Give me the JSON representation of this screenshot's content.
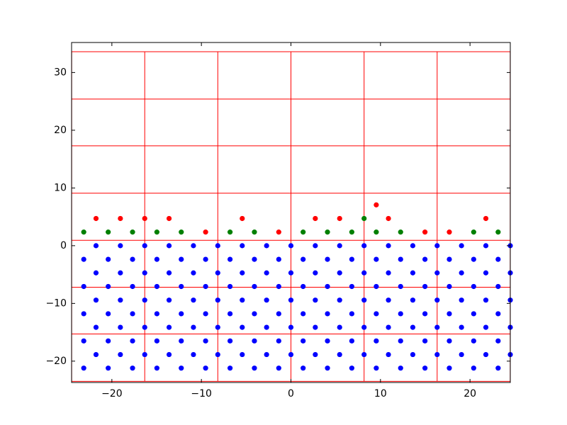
{
  "chart_data": {
    "type": "scatter",
    "xlim": [
      -24.5,
      24.5
    ],
    "ylim": [
      -23.7,
      35.2
    ],
    "xticks": [
      {
        "value": -20,
        "label": "−20"
      },
      {
        "value": -10,
        "label": "−10"
      },
      0,
      10,
      20
    ],
    "yticks": [
      {
        "value": -20,
        "label": "−20"
      },
      {
        "value": -10,
        "label": "−10"
      },
      0,
      10,
      20,
      30
    ],
    "lines": {
      "color": "#ff0000",
      "vlines": [
        -24.49,
        -16.33,
        -8.17,
        0,
        8.17,
        16.33,
        24.49
      ],
      "hlines": [
        -23.5,
        -15.3,
        -7.2,
        0.94,
        9.1,
        17.3,
        25.4,
        33.6
      ]
    },
    "series": [
      {
        "color": "#0000ff",
        "x": [
          -21.77,
          -19.05,
          -16.33,
          -13.61,
          -10.89,
          -8.17,
          -5.44,
          -2.72,
          0,
          2.72,
          5.44,
          8.17,
          10.89,
          13.61,
          16.33,
          19.05,
          21.77,
          24.5,
          -23.14,
          -20.41,
          -17.69,
          -14.97,
          -12.25,
          -9.53,
          -6.8,
          -4.08,
          -1.36,
          1.36,
          4.08,
          6.8,
          9.53,
          12.25,
          14.97,
          17.69,
          20.41,
          23.14,
          -21.77,
          -19.05,
          -16.33,
          -13.61,
          -10.89,
          -8.17,
          -5.44,
          -2.72,
          0,
          2.72,
          5.44,
          8.17,
          10.89,
          13.61,
          16.33,
          19.05,
          21.77,
          24.5,
          -23.14,
          -20.41,
          -17.69,
          -14.97,
          -12.25,
          -9.53,
          -6.8,
          -4.08,
          -1.36,
          1.36,
          4.08,
          6.8,
          9.53,
          12.25,
          14.97,
          17.69,
          20.41,
          23.14,
          -21.77,
          -19.05,
          -16.33,
          -13.61,
          -10.89,
          -8.17,
          -5.44,
          -2.72,
          0,
          2.72,
          5.44,
          8.17,
          10.89,
          13.61,
          16.33,
          19.05,
          21.77,
          24.5,
          -23.14,
          -20.41,
          -17.69,
          -14.97,
          -12.25,
          -9.53,
          -6.8,
          -4.08,
          -1.36,
          1.36,
          4.08,
          6.8,
          9.53,
          12.25,
          14.97,
          17.69,
          20.41,
          23.14,
          -21.77,
          -19.05,
          -16.33,
          -13.61,
          -10.89,
          -8.17,
          -5.44,
          -2.72,
          0,
          2.72,
          5.44,
          8.17,
          10.89,
          13.61,
          16.33,
          19.05,
          21.77,
          24.5,
          -23.14,
          -20.41,
          -17.69,
          -14.97,
          -12.25,
          -9.53,
          -6.8,
          -4.08,
          -1.36,
          1.36,
          4.08,
          6.8,
          9.53,
          12.25,
          14.97,
          17.69,
          20.41,
          23.14,
          -21.77,
          -19.05,
          -16.33,
          -13.61,
          -10.89,
          -8.17,
          -5.44,
          -2.72,
          0,
          2.72,
          5.44,
          8.17,
          10.89,
          13.61,
          16.33,
          19.05,
          21.77,
          24.5,
          -23.14,
          -20.41,
          -17.69,
          -14.97,
          -12.25,
          -9.53,
          -6.8,
          -4.08,
          -1.36,
          1.36,
          4.08,
          6.8,
          9.53,
          12.25,
          14.97,
          17.69,
          20.41,
          23.14
        ],
        "y": [
          0,
          0,
          0,
          0,
          0,
          0,
          0,
          0,
          0,
          0,
          0,
          0,
          0,
          0,
          0,
          0,
          0,
          0,
          -2.36,
          -2.36,
          -2.36,
          -2.36,
          -2.36,
          -2.36,
          -2.36,
          -2.36,
          -2.36,
          -2.36,
          -2.36,
          -2.36,
          -2.36,
          -2.36,
          -2.36,
          -2.36,
          -2.36,
          -2.36,
          -4.71,
          -4.71,
          -4.71,
          -4.71,
          -4.71,
          -4.71,
          -4.71,
          -4.71,
          -4.71,
          -4.71,
          -4.71,
          -4.71,
          -4.71,
          -4.71,
          -4.71,
          -4.71,
          -4.71,
          -4.71,
          -7.07,
          -7.07,
          -7.07,
          -7.07,
          -7.07,
          -7.07,
          -7.07,
          -7.07,
          -7.07,
          -7.07,
          -7.07,
          -7.07,
          -7.07,
          -7.07,
          -7.07,
          -7.07,
          -7.07,
          -7.07,
          -9.43,
          -9.43,
          -9.43,
          -9.43,
          -9.43,
          -9.43,
          -9.43,
          -9.43,
          -9.43,
          -9.43,
          -9.43,
          -9.43,
          -9.43,
          -9.43,
          -9.43,
          -9.43,
          -9.43,
          -9.43,
          -11.79,
          -11.79,
          -11.79,
          -11.79,
          -11.79,
          -11.79,
          -11.79,
          -11.79,
          -11.79,
          -11.79,
          -11.79,
          -11.79,
          -11.79,
          -11.79,
          -11.79,
          -11.79,
          -11.79,
          -11.79,
          -14.14,
          -14.14,
          -14.14,
          -14.14,
          -14.14,
          -14.14,
          -14.14,
          -14.14,
          -14.14,
          -14.14,
          -14.14,
          -14.14,
          -14.14,
          -14.14,
          -14.14,
          -14.14,
          -14.14,
          -14.14,
          -16.5,
          -16.5,
          -16.5,
          -16.5,
          -16.5,
          -16.5,
          -16.5,
          -16.5,
          -16.5,
          -16.5,
          -16.5,
          -16.5,
          -16.5,
          -16.5,
          -16.5,
          -16.5,
          -16.5,
          -16.5,
          -18.86,
          -18.86,
          -18.86,
          -18.86,
          -18.86,
          -18.86,
          -18.86,
          -18.86,
          -18.86,
          -18.86,
          -18.86,
          -18.86,
          -18.86,
          -18.86,
          -18.86,
          -18.86,
          -18.86,
          -18.86,
          -21.21,
          -21.21,
          -21.21,
          -21.21,
          -21.21,
          -21.21,
          -21.21,
          -21.21,
          -21.21,
          -21.21,
          -21.21,
          -21.21,
          -21.21,
          -21.21,
          -21.21,
          -21.21,
          -21.21,
          -21.21
        ]
      },
      {
        "color": "#008000",
        "x": [
          -23.14,
          -20.41,
          -17.69,
          -14.97,
          -12.25,
          -6.8,
          -4.08,
          1.36,
          4.08,
          6.8,
          9.53,
          12.25,
          20.41,
          23.14,
          8.17
        ],
        "y": [
          2.36,
          2.36,
          2.36,
          2.36,
          2.36,
          2.36,
          2.36,
          2.36,
          2.36,
          2.36,
          2.36,
          2.36,
          2.36,
          2.36,
          4.71
        ]
      },
      {
        "color": "#ff0000",
        "x": [
          -9.53,
          -1.36,
          14.97,
          17.69,
          -21.77,
          -19.05,
          -16.33,
          -13.61,
          -5.44,
          2.72,
          5.44,
          10.89,
          21.77,
          9.53
        ],
        "y": [
          2.36,
          2.36,
          2.36,
          2.36,
          4.71,
          4.71,
          4.71,
          4.71,
          4.71,
          4.71,
          4.71,
          4.71,
          4.71,
          7.07
        ]
      }
    ]
  }
}
